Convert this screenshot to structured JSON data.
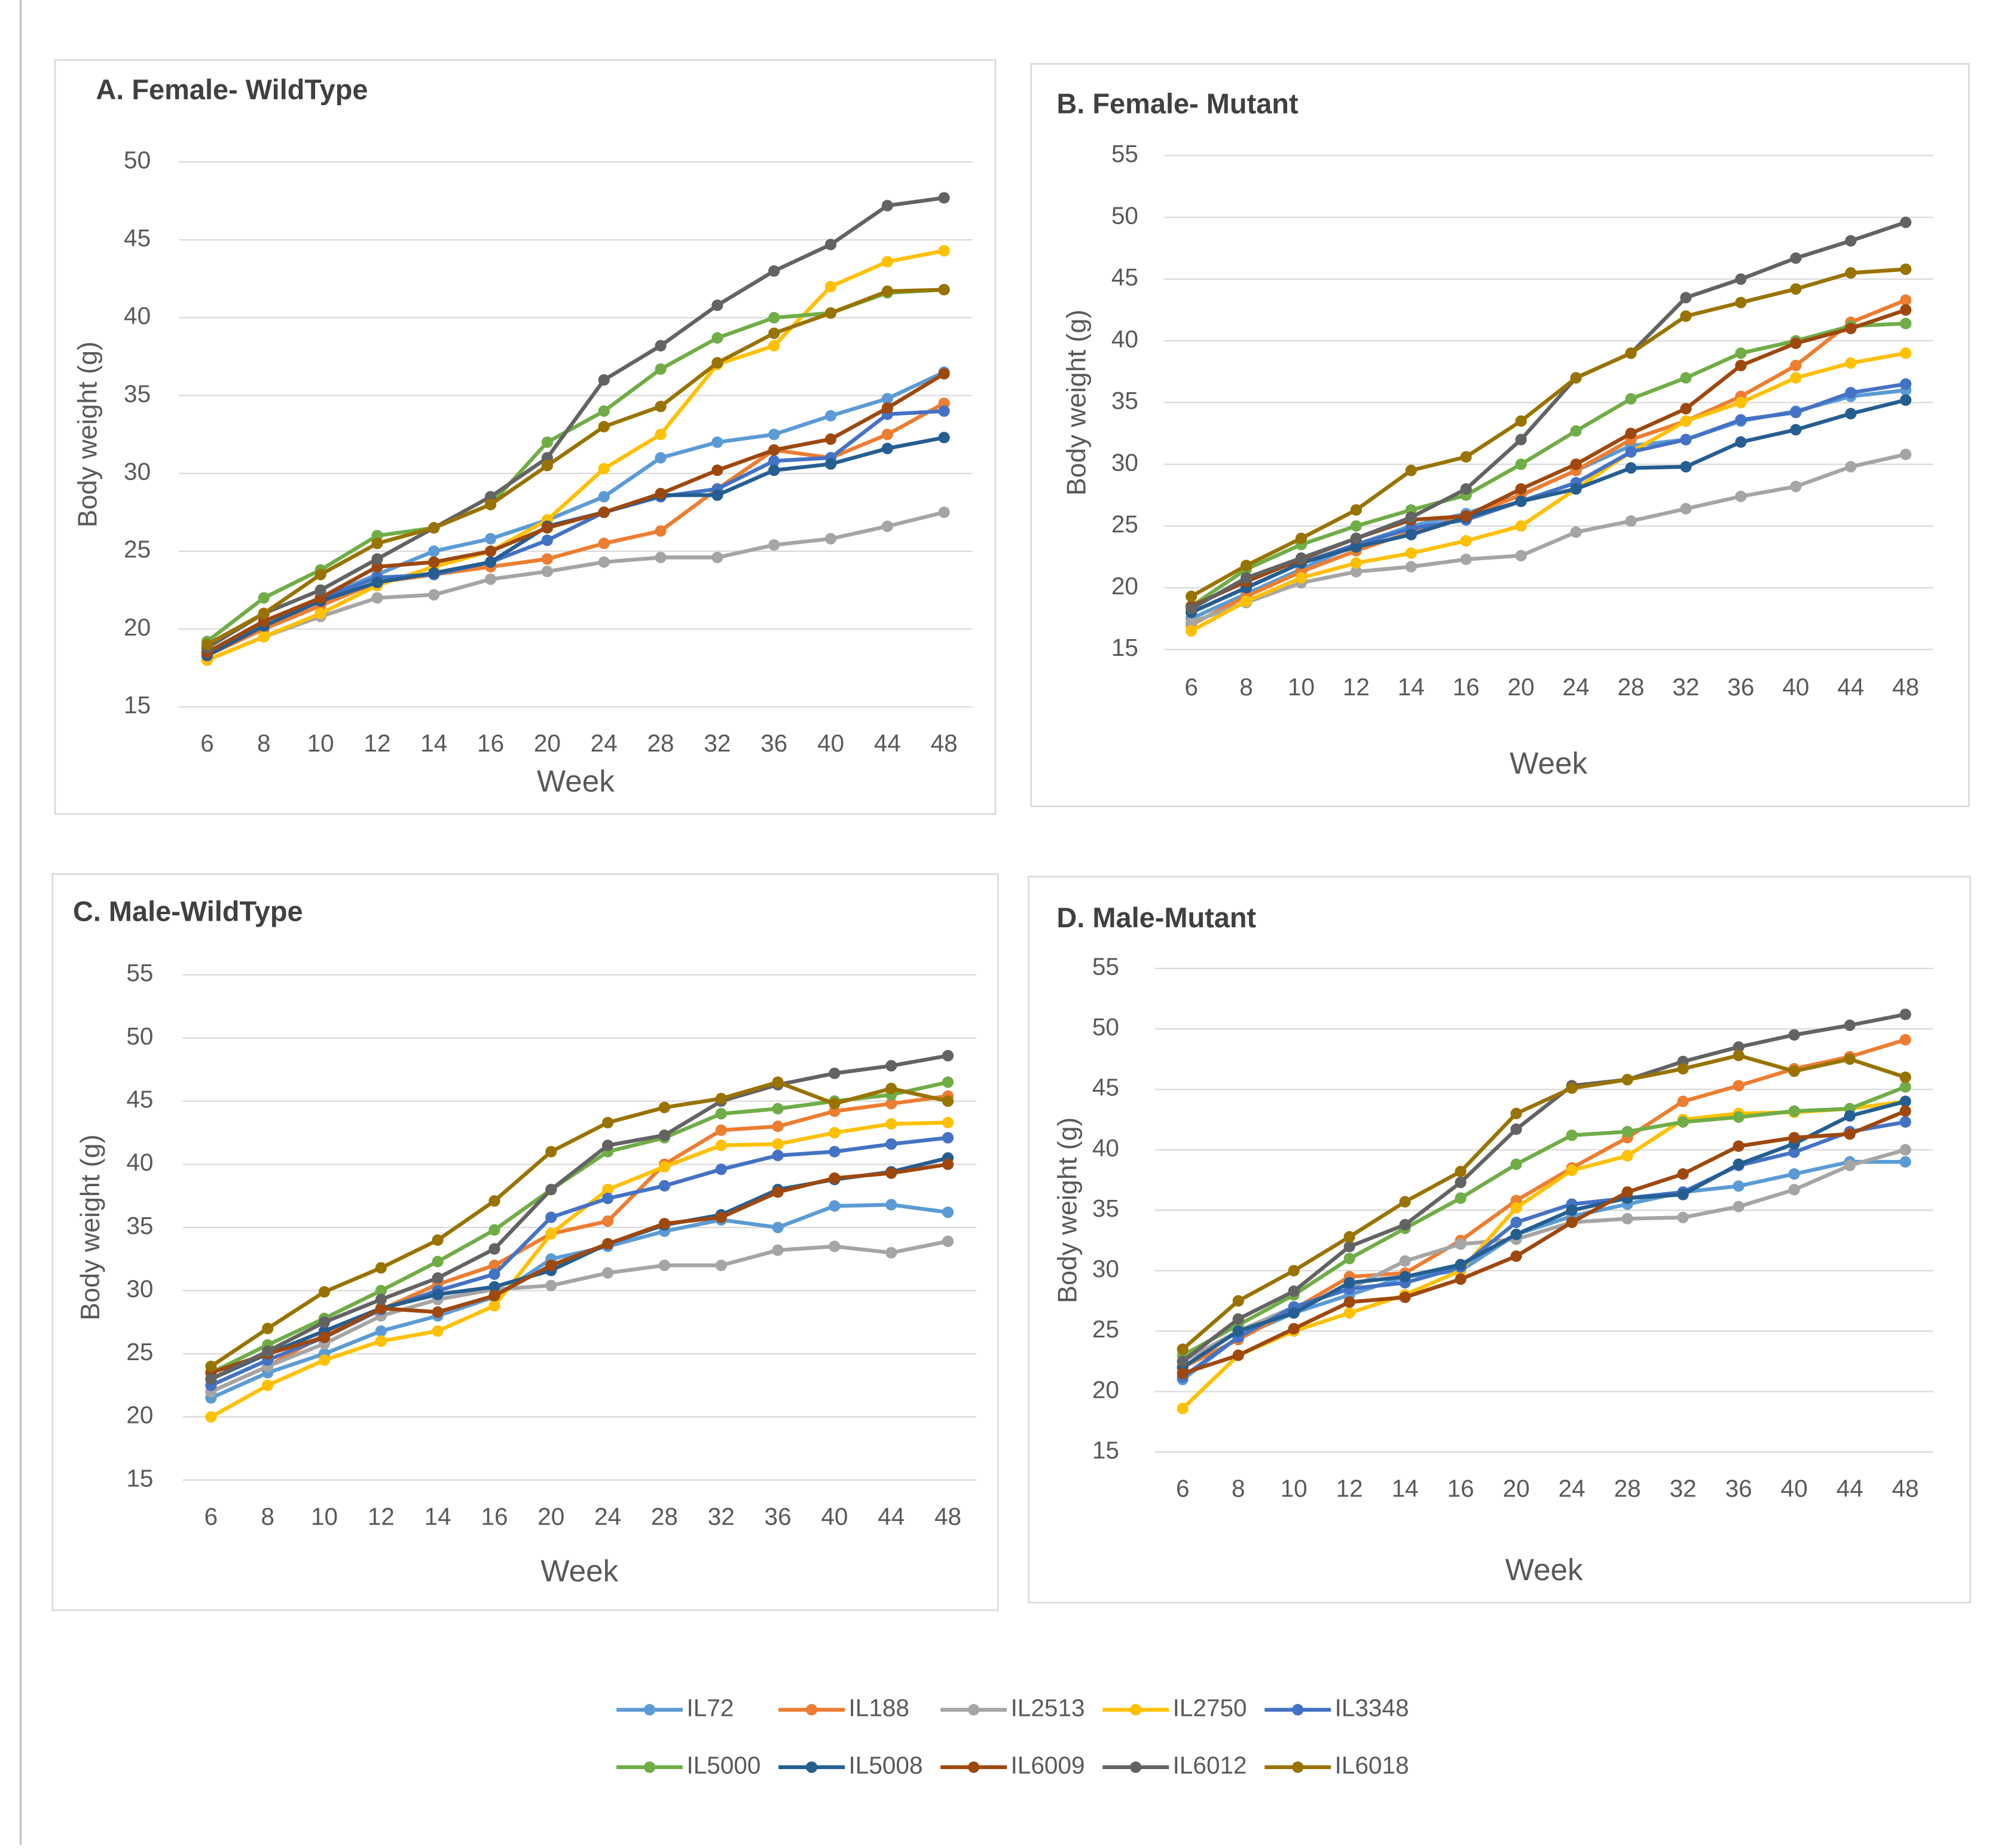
{
  "chart_data": [
    {
      "type": "line",
      "title": "A. Female- WildType",
      "x_label": "Week",
      "y_label": "Body weight (g)",
      "categories": [
        "6",
        "8",
        "10",
        "12",
        "14",
        "16",
        "20",
        "24",
        "28",
        "32",
        "36",
        "40",
        "44",
        "48"
      ],
      "ylim": [
        15,
        50
      ],
      "yticks": [
        15,
        20,
        25,
        30,
        35,
        40,
        45,
        50
      ],
      "grid": true,
      "series": [
        {
          "values": [
            18.5,
            20,
            22,
            23.5,
            25,
            25.8,
            27,
            28.5,
            31,
            32,
            32.5,
            33.7,
            34.8,
            36.5
          ]
        },
        {
          "values": [
            18.3,
            20,
            21.5,
            23,
            23.5,
            24,
            24.5,
            25.5,
            26.3,
            29,
            31.5,
            31,
            32.5,
            34.5
          ]
        },
        {
          "values": [
            18,
            19.5,
            20.8,
            22,
            22.2,
            23.2,
            23.7,
            24.3,
            24.6,
            24.6,
            25.4,
            25.8,
            26.6,
            27.5
          ]
        },
        {
          "values": [
            18,
            19.5,
            21,
            22.8,
            24,
            25,
            27,
            30.3,
            32.5,
            37,
            38.2,
            42,
            43.6,
            44.3
          ]
        },
        {
          "values": [
            18.5,
            20.5,
            22,
            23.3,
            23.5,
            24.3,
            25.7,
            27.5,
            28.5,
            29,
            30.8,
            31,
            33.8,
            34
          ]
        },
        {
          "values": [
            19.2,
            22,
            23.8,
            26,
            26.5,
            28,
            32,
            34,
            36.7,
            38.7,
            40,
            40.3,
            41.6,
            41.8
          ]
        },
        {
          "values": [
            18.3,
            20.2,
            21.8,
            23,
            23.6,
            24.3,
            26.6,
            27.5,
            28.6,
            28.6,
            30.2,
            30.6,
            31.6,
            32.3
          ]
        },
        {
          "values": [
            18.5,
            20.5,
            22,
            24,
            24.3,
            25,
            26.5,
            27.5,
            28.7,
            30.2,
            31.5,
            32.2,
            34.2,
            36.4
          ]
        },
        {
          "values": [
            18.8,
            21,
            22.5,
            24.5,
            26.5,
            28.5,
            31,
            36,
            38.2,
            40.8,
            43,
            44.7,
            47.2,
            47.7
          ]
        },
        {
          "values": [
            19,
            21,
            23.5,
            25.5,
            26.5,
            28,
            30.5,
            33,
            34.3,
            37.1,
            39,
            40.3,
            41.7,
            41.8
          ]
        }
      ]
    },
    {
      "type": "line",
      "title": "B. Female- Mutant",
      "x_label": "Week",
      "y_label": "Body weight (g)",
      "categories": [
        "6",
        "8",
        "10",
        "12",
        "14",
        "16",
        "20",
        "24",
        "28",
        "32",
        "36",
        "40",
        "44",
        "48"
      ],
      "ylim": [
        15,
        55
      ],
      "yticks": [
        15,
        20,
        25,
        30,
        35,
        40,
        45,
        50,
        55
      ],
      "grid": true,
      "series": [
        {
          "values": [
            17.5,
            19.5,
            21.5,
            23.5,
            25,
            26,
            27.5,
            29.5,
            31.5,
            32,
            33.5,
            34.3,
            35.5,
            36
          ]
        },
        {
          "values": [
            17,
            19.3,
            21.3,
            23,
            24.5,
            25.8,
            27.5,
            29.5,
            32,
            33.5,
            35.5,
            38,
            41.5,
            43.3
          ]
        },
        {
          "values": [
            17.2,
            18.8,
            20.4,
            21.3,
            21.7,
            22.3,
            22.6,
            24.5,
            25.4,
            26.4,
            27.4,
            28.2,
            29.8,
            30.8
          ]
        },
        {
          "values": [
            16.5,
            18.9,
            20.8,
            22,
            22.8,
            23.8,
            25,
            28,
            31,
            33.5,
            35,
            37,
            38.2,
            39
          ]
        },
        {
          "values": [
            18,
            20,
            22,
            23.5,
            24.8,
            25.5,
            27,
            28.5,
            31,
            32,
            33.6,
            34.2,
            35.8,
            36.5
          ]
        },
        {
          "values": [
            18.5,
            21.5,
            23.5,
            25,
            26.3,
            27.5,
            30,
            32.7,
            35.3,
            37,
            39,
            40,
            41.2,
            41.4
          ]
        },
        {
          "values": [
            18,
            20,
            22,
            23.3,
            24.3,
            25.7,
            27,
            28,
            29.7,
            29.8,
            31.8,
            32.8,
            34.1,
            35.2
          ]
        },
        {
          "values": [
            18.5,
            20.5,
            22.3,
            24,
            25.5,
            25.8,
            28,
            30,
            32.5,
            34.5,
            38,
            39.8,
            41,
            42.5
          ]
        },
        {
          "values": [
            18.3,
            20.8,
            22.4,
            24,
            25.7,
            28,
            32,
            37,
            39,
            43.5,
            45,
            46.7,
            48.1,
            49.6
          ]
        },
        {
          "values": [
            19.3,
            21.8,
            24,
            26.3,
            29.5,
            30.6,
            33.5,
            37,
            39,
            42,
            43.1,
            44.2,
            45.5,
            45.8
          ]
        }
      ]
    },
    {
      "type": "line",
      "title": "C. Male-WildType",
      "x_label": "Week",
      "y_label": "Body weight (g)",
      "categories": [
        "6",
        "8",
        "10",
        "12",
        "14",
        "16",
        "20",
        "24",
        "28",
        "32",
        "36",
        "40",
        "44",
        "48"
      ],
      "ylim": [
        15,
        55
      ],
      "yticks": [
        15,
        20,
        25,
        30,
        35,
        40,
        45,
        50,
        55
      ],
      "grid": true,
      "series": [
        {
          "values": [
            21.5,
            23.5,
            25,
            26.8,
            28,
            29.5,
            32.5,
            33.5,
            34.7,
            35.6,
            35,
            36.7,
            36.8,
            36.2
          ]
        },
        {
          "values": [
            22,
            24,
            26.5,
            28.5,
            30.5,
            32,
            34.5,
            35.5,
            40,
            42.7,
            43,
            44.2,
            44.8,
            45.4
          ]
        },
        {
          "values": [
            22,
            24,
            25.8,
            28,
            29.3,
            30.1,
            30.4,
            31.4,
            32,
            32,
            33.2,
            33.5,
            33,
            33.9
          ]
        },
        {
          "values": [
            20,
            22.5,
            24.5,
            26,
            26.8,
            28.8,
            34.5,
            38,
            39.8,
            41.5,
            41.6,
            42.5,
            43.2,
            43.3
          ]
        },
        {
          "values": [
            22.5,
            24.5,
            26.3,
            28.5,
            30,
            31.3,
            35.8,
            37.3,
            38.3,
            39.6,
            40.7,
            41,
            41.6,
            42.1
          ]
        },
        {
          "values": [
            23.5,
            25.7,
            27.8,
            30,
            32.3,
            34.8,
            38,
            41,
            42.1,
            44,
            44.4,
            45,
            45.5,
            46.5
          ]
        },
        {
          "values": [
            23,
            25,
            26.8,
            28.6,
            29.7,
            30.3,
            31.6,
            33.7,
            35.2,
            36,
            38,
            38.8,
            39.4,
            40.5
          ]
        },
        {
          "values": [
            23.5,
            25,
            26.3,
            28.6,
            28.3,
            29.6,
            32,
            33.7,
            35.3,
            35.8,
            37.8,
            38.9,
            39.3,
            40
          ]
        },
        {
          "values": [
            23,
            25.2,
            27.5,
            29.3,
            31,
            33.3,
            38,
            41.5,
            42.3,
            45,
            46.3,
            47.2,
            47.8,
            48.6
          ]
        },
        {
          "values": [
            24,
            27,
            29.9,
            31.8,
            34,
            37.1,
            41,
            43.3,
            44.5,
            45.2,
            46.5,
            44.8,
            46,
            45
          ]
        }
      ]
    },
    {
      "type": "line",
      "title": "D. Male-Mutant",
      "x_label": "Week",
      "y_label": "Body weight (g)",
      "categories": [
        "6",
        "8",
        "10",
        "12",
        "14",
        "16",
        "20",
        "24",
        "28",
        "32",
        "36",
        "40",
        "44",
        "48"
      ],
      "ylim": [
        15,
        55
      ],
      "yticks": [
        15,
        20,
        25,
        30,
        35,
        40,
        45,
        50,
        55
      ],
      "grid": true,
      "series": [
        {
          "values": [
            21,
            24.5,
            26.5,
            28,
            29.5,
            30,
            33,
            34.5,
            35.5,
            36.5,
            37,
            38,
            39,
            39
          ]
        },
        {
          "values": [
            22,
            24.3,
            26.8,
            29.5,
            29.8,
            32.5,
            35.8,
            38.5,
            41,
            44,
            45.3,
            46.7,
            47.7,
            49.1
          ]
        },
        {
          "values": [
            22.5,
            25,
            27,
            28.5,
            30.8,
            32.2,
            32.6,
            34,
            34.3,
            34.4,
            35.3,
            36.7,
            38.7,
            40
          ]
        },
        {
          "values": [
            18.6,
            23,
            25,
            26.5,
            28,
            30,
            35.2,
            38.3,
            39.5,
            42.5,
            43,
            43.1,
            43.4,
            44
          ]
        },
        {
          "values": [
            21.2,
            24.5,
            27,
            28.5,
            29,
            30.3,
            34,
            35.5,
            36,
            36.5,
            38.7,
            39.8,
            41.5,
            42.3
          ]
        },
        {
          "values": [
            23,
            25.5,
            28,
            31,
            33.5,
            36,
            38.8,
            41.2,
            41.5,
            42.3,
            42.7,
            43.2,
            43.4,
            45.2
          ]
        },
        {
          "values": [
            22,
            25,
            26.5,
            29,
            29.5,
            30.5,
            33,
            35,
            36,
            36.3,
            38.8,
            40.5,
            42.8,
            44
          ]
        },
        {
          "values": [
            21.5,
            23,
            25.2,
            27.4,
            27.8,
            29.3,
            31.2,
            34,
            36.5,
            38,
            40.3,
            41,
            41.3,
            43.2
          ]
        },
        {
          "values": [
            22.5,
            26,
            28.3,
            32,
            33.8,
            37.3,
            41.7,
            45.3,
            45.8,
            47.3,
            48.5,
            49.5,
            50.3,
            51.2
          ]
        },
        {
          "values": [
            23.5,
            27.5,
            30,
            32.8,
            35.7,
            38.2,
            43,
            45.1,
            45.8,
            46.7,
            47.8,
            46.5,
            47.5,
            46
          ]
        }
      ]
    }
  ],
  "legend": [
    {
      "name": "IL72",
      "color": "#5B9BD5"
    },
    {
      "name": "IL188",
      "color": "#ED7D31"
    },
    {
      "name": "IL2513",
      "color": "#A5A5A5"
    },
    {
      "name": "IL2750",
      "color": "#FFC000"
    },
    {
      "name": "IL3348",
      "color": "#4472C4"
    },
    {
      "name": "IL5000",
      "color": "#70AD47"
    },
    {
      "name": "IL5008",
      "color": "#255E91"
    },
    {
      "name": "IL6009",
      "color": "#9E480E"
    },
    {
      "name": "IL6012",
      "color": "#636363"
    },
    {
      "name": "IL6018",
      "color": "#997300"
    }
  ]
}
